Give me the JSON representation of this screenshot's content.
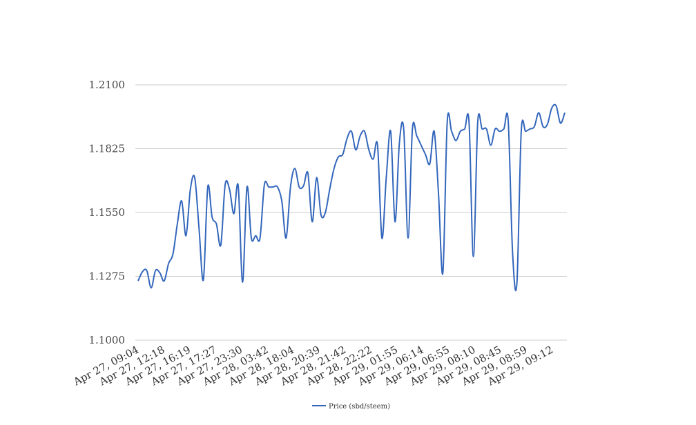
{
  "chart_data": {
    "type": "line",
    "title": "",
    "xlabel": "",
    "ylabel": "",
    "ylim": [
      1.1,
      1.21
    ],
    "y_ticks": [
      "1.1000",
      "1.1275",
      "1.1550",
      "1.1825",
      "1.2100"
    ],
    "y_tick_values": [
      1.1,
      1.1275,
      1.155,
      1.1825,
      1.21
    ],
    "x_tick_labels": [
      "Apr 27, 09:04",
      "Apr 27, 12:18",
      "Apr 27, 16:19",
      "Apr 27, 17:27",
      "Apr 27, 23:30",
      "Apr 28, 03:42",
      "Apr 28, 18:04",
      "Apr 28, 20:39",
      "Apr 28, 21:42",
      "Apr 28, 22:22",
      "Apr 29, 01:55",
      "Apr 29, 06:14",
      "Apr 29, 06:55",
      "Apr 29, 08:10",
      "Apr 29, 08:45",
      "Apr 29, 08:59",
      "Apr 29, 09:12"
    ],
    "grid": true,
    "legend": "bottom",
    "series": [
      {
        "name": "Price (sbd/steem)",
        "color": "#3366bb",
        "values": [
          1.1255,
          1.1295,
          1.13,
          1.1225,
          1.13,
          1.129,
          1.1255,
          1.133,
          1.137,
          1.15,
          1.16,
          1.145,
          1.165,
          1.17,
          1.148,
          1.126,
          1.166,
          1.153,
          1.15,
          1.141,
          1.167,
          1.165,
          1.1545,
          1.1665,
          1.125,
          1.166,
          1.144,
          1.145,
          1.144,
          1.167,
          1.166,
          1.166,
          1.166,
          1.16,
          1.144,
          1.166,
          1.174,
          1.166,
          1.1665,
          1.172,
          1.151,
          1.17,
          1.154,
          1.155,
          1.165,
          1.174,
          1.179,
          1.18,
          1.187,
          1.19,
          1.182,
          1.188,
          1.19,
          1.182,
          1.178,
          1.184,
          1.144,
          1.17,
          1.19,
          1.151,
          1.185,
          1.191,
          1.144,
          1.191,
          1.188,
          1.184,
          1.18,
          1.176,
          1.19,
          1.163,
          1.129,
          1.194,
          1.19,
          1.186,
          1.19,
          1.191,
          1.194,
          1.136,
          1.194,
          1.191,
          1.191,
          1.184,
          1.191,
          1.19,
          1.191,
          1.1945,
          1.138,
          1.1245,
          1.19,
          1.19,
          1.191,
          1.192,
          1.198,
          1.192,
          1.193,
          1.2,
          1.201,
          1.1935,
          1.198
        ]
      }
    ]
  }
}
